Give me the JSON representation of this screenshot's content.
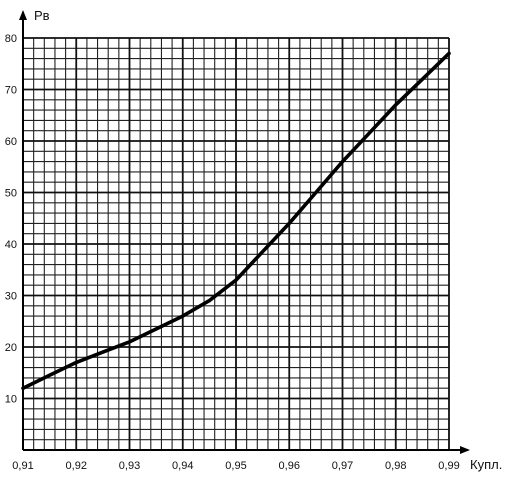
{
  "chart_data": {
    "type": "line",
    "title": "",
    "xlabel": "Купл.",
    "ylabel": "Рв",
    "xlim": [
      0.91,
      0.99
    ],
    "ylim": [
      0,
      80
    ],
    "x_ticks": [
      "0,91",
      "0,92",
      "0,93",
      "0,94",
      "0,95",
      "0,96",
      "0,97",
      "0,98",
      "0,99"
    ],
    "y_ticks": [
      "10",
      "20",
      "30",
      "40",
      "50",
      "60",
      "70",
      "80"
    ],
    "grid": true,
    "x_minor_step": 0.002,
    "y_minor_step": 2,
    "series": [
      {
        "x": [
          0.91,
          0.915,
          0.92,
          0.925,
          0.93,
          0.935,
          0.94,
          0.945,
          0.95,
          0.955,
          0.96,
          0.965,
          0.97,
          0.975,
          0.98,
          0.985,
          0.99
        ],
        "y": [
          12,
          14.5,
          17,
          19,
          21,
          23.5,
          26,
          29,
          33,
          38.5,
          44,
          50,
          56,
          61.5,
          67,
          72,
          77
        ]
      }
    ]
  }
}
